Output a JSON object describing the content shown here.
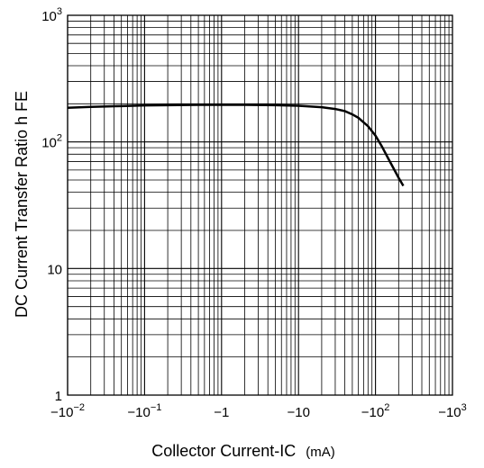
{
  "chart_data": {
    "type": "line",
    "title": "",
    "xlabel": "Collector Current-IC",
    "xlabel_unit": "(mA)",
    "ylabel": "DC Current Transfer Ratio h FE",
    "x_scale": "log",
    "y_scale": "log",
    "xlim": [
      0.01,
      1000
    ],
    "ylim": [
      1,
      1000
    ],
    "grid": true,
    "x_ticks": [
      {
        "value": 0.01,
        "base": "−10",
        "exp": "−2"
      },
      {
        "value": 0.1,
        "base": "−10",
        "exp": "−1"
      },
      {
        "value": 1,
        "base": "−1",
        "exp": ""
      },
      {
        "value": 10,
        "base": "−10",
        "exp": ""
      },
      {
        "value": 100,
        "base": "−10",
        "exp": "2"
      },
      {
        "value": 1000,
        "base": "−10",
        "exp": "3"
      }
    ],
    "y_ticks": [
      {
        "value": 1,
        "base": "1",
        "exp": ""
      },
      {
        "value": 10,
        "base": "10",
        "exp": ""
      },
      {
        "value": 100,
        "base": "10",
        "exp": "2"
      },
      {
        "value": 1000,
        "base": "10",
        "exp": "3"
      }
    ],
    "series": [
      {
        "x": [
          0.01,
          0.02,
          0.05,
          0.1,
          0.2,
          0.5,
          1,
          2,
          5,
          10,
          20,
          30,
          40,
          50,
          60,
          80,
          100,
          120,
          150,
          200,
          230
        ],
        "y": [
          186,
          189,
          192,
          194,
          195,
          196,
          196,
          196,
          195,
          193,
          188,
          182,
          175,
          165,
          155,
          133,
          112,
          93,
          72,
          52,
          45
        ]
      }
    ]
  }
}
